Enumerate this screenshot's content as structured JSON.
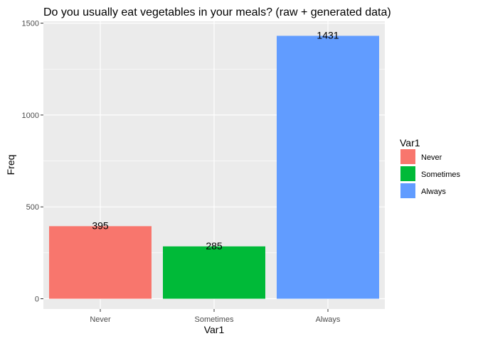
{
  "chart_data": {
    "type": "bar",
    "title": "Do you usually eat vegetables in your meals? (raw + generated data)",
    "xlabel": "Var1",
    "ylabel": "Freq",
    "categories": [
      "Never",
      "Sometimes",
      "Always"
    ],
    "values": [
      395,
      285,
      1431
    ],
    "data_labels": [
      "395",
      "285",
      "1431"
    ],
    "colors": [
      "#F8766D",
      "#00BA38",
      "#619CFF"
    ],
    "ylim": [
      -56,
      1510
    ],
    "yticks": [
      0,
      500,
      1000,
      1500
    ],
    "ytick_labels": [
      "0",
      "500",
      "1000",
      "1500"
    ],
    "grid": true,
    "panel_background": "#EBEBEB",
    "legend": {
      "title": "Var1",
      "position": "right",
      "entries": [
        "Never",
        "Sometimes",
        "Always"
      ]
    }
  }
}
